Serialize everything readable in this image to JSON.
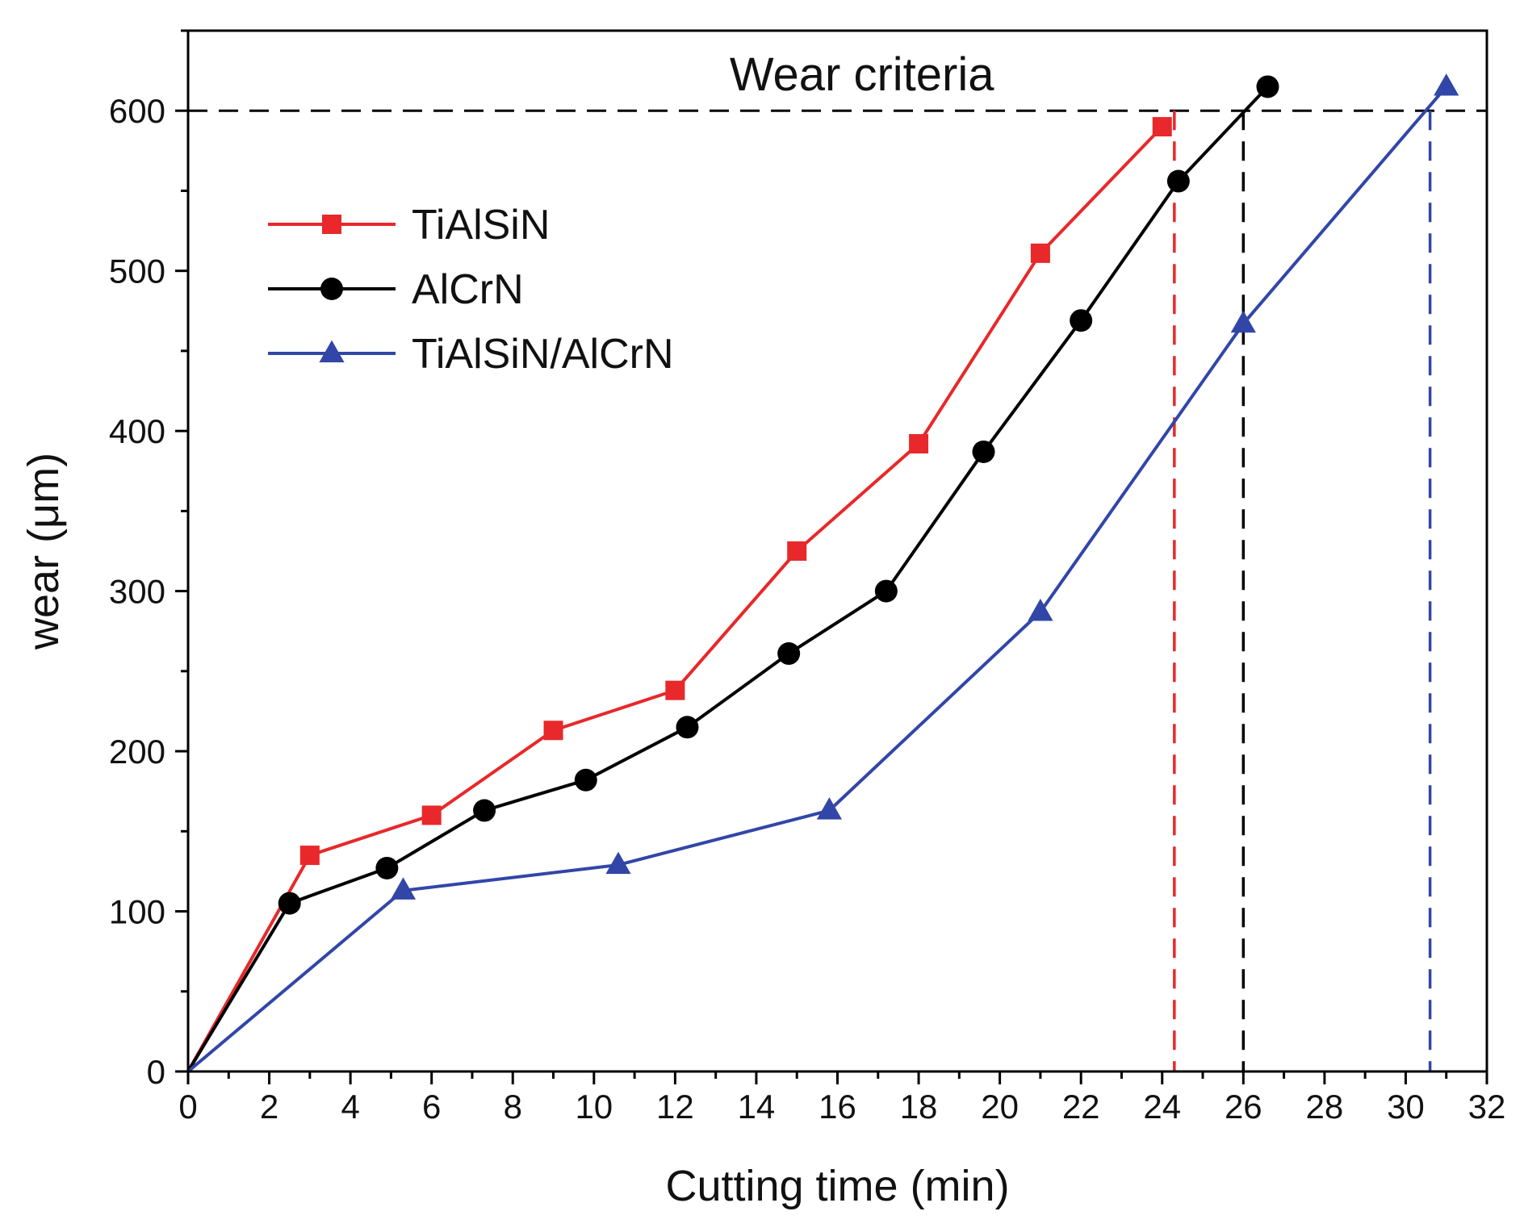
{
  "chart_data": {
    "type": "line",
    "xlabel": "Cutting time (min)",
    "ylabel": "wear (μm)",
    "xlim": [
      0,
      32
    ],
    "ylim": [
      0,
      650
    ],
    "xticks": [
      0,
      2,
      4,
      6,
      8,
      10,
      12,
      14,
      16,
      18,
      20,
      22,
      24,
      26,
      28,
      30,
      32
    ],
    "yticks": [
      0,
      100,
      200,
      300,
      400,
      500,
      600
    ],
    "grid": false,
    "legend_position": "upper-left",
    "series": [
      {
        "name": "TiAlSiN",
        "color": "#e8282a",
        "marker": "square",
        "x": [
          0,
          3,
          6,
          9,
          12,
          15,
          18,
          21,
          24
        ],
        "y": [
          0,
          135,
          160,
          213,
          238,
          325,
          392,
          511,
          590
        ]
      },
      {
        "name": "AlCrN",
        "color": "#000000",
        "marker": "circle",
        "x": [
          0,
          2.5,
          4.9,
          7.3,
          9.8,
          12.3,
          14.8,
          17.2,
          19.6,
          22,
          24.4,
          26.6
        ],
        "y": [
          0,
          105,
          127,
          163,
          182,
          215,
          261,
          300,
          387,
          469,
          556,
          615
        ]
      },
      {
        "name": "TiAlSiN/AlCrN",
        "color": "#3246a8",
        "marker": "triangle",
        "x": [
          0,
          5.3,
          10.6,
          15.8,
          21,
          26,
          31
        ],
        "y": [
          0,
          113,
          129,
          163,
          287,
          467,
          615
        ]
      }
    ],
    "annotations": {
      "wear_criteria_label": "Wear criteria",
      "wear_criteria_value": 600,
      "criteria_lines": [
        {
          "series": "TiAlSiN",
          "x": 24.3,
          "color": "#e8282a"
        },
        {
          "series": "AlCrN",
          "x": 26,
          "color": "#000000"
        },
        {
          "series": "TiAlSiN/AlCrN",
          "x": 30.6,
          "color": "#3246a8"
        }
      ]
    }
  }
}
